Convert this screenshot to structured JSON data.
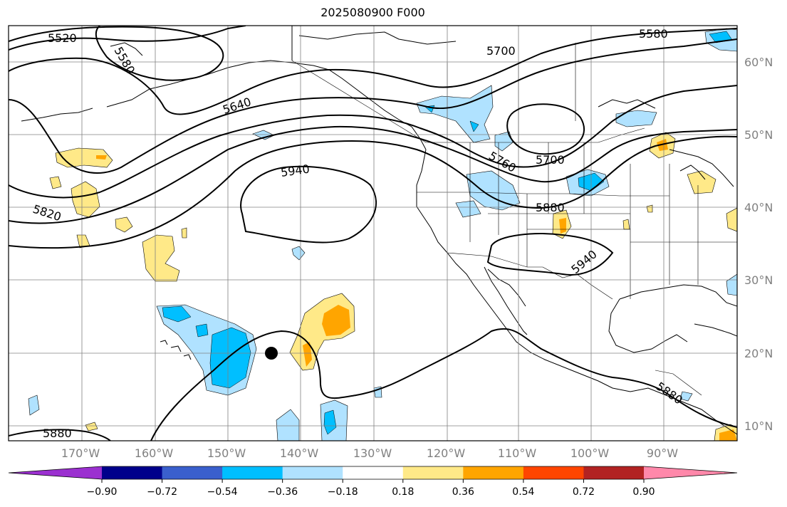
{
  "title": "2025080900 F000",
  "lat_labels": [
    "60°N",
    "50°N",
    "40°N",
    "30°N",
    "20°N",
    "10°N"
  ],
  "lon_labels": [
    "170°W",
    "160°W",
    "150°W",
    "140°W",
    "130°W",
    "120°W",
    "110°W",
    "100°W",
    "90°W"
  ],
  "contour_labels": [
    "5520",
    "5580",
    "5580",
    "5640",
    "5700",
    "5700",
    "5760",
    "5820",
    "5880",
    "5880",
    "5880",
    "5940",
    "5940"
  ],
  "colorbar": {
    "ticks": [
      "−0.90",
      "−0.72",
      "−0.54",
      "−0.36",
      "−0.18",
      "0.18",
      "0.36",
      "0.54",
      "0.72",
      "0.90"
    ],
    "colors": [
      "#9b30d0",
      "#00008b",
      "#3a5fcd",
      "#00bfff",
      "#b0e2ff",
      "#ffffff",
      "#ffe988",
      "#ffa500",
      "#ff4500",
      "#b22222",
      "#ff88aa"
    ]
  },
  "marker": {
    "symbol": "black-dot",
    "lon": -144,
    "lat": 20
  }
}
